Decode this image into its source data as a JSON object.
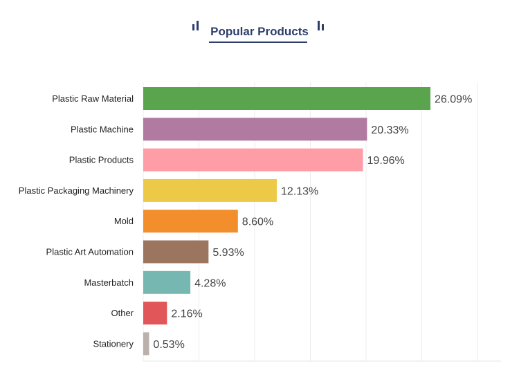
{
  "chart_data": {
    "type": "bar",
    "orientation": "horizontal",
    "title": "Popular Products",
    "categories": [
      "Plastic Raw Material",
      "Plastic Machine",
      "Plastic Products",
      "Plastic Packaging Machinery",
      "Mold",
      "Plastic Art Automation",
      "Masterbatch",
      "Other",
      "Stationery"
    ],
    "values": [
      26.09,
      20.33,
      19.96,
      12.13,
      8.6,
      5.93,
      4.28,
      2.16,
      0.53
    ],
    "value_labels": [
      "26.09%",
      "20.33%",
      "19.96%",
      "12.13%",
      "8.60%",
      "5.93%",
      "4.28%",
      "2.16%",
      "0.53%"
    ],
    "colors": [
      "#5aa44e",
      "#b07aa1",
      "#ff9da7",
      "#edc948",
      "#f28e2b",
      "#9c755f",
      "#76b7b2",
      "#e15759",
      "#bab0ac"
    ],
    "xlim": [
      0,
      32.5
    ],
    "grid": true,
    "xlabel": "",
    "ylabel": ""
  }
}
